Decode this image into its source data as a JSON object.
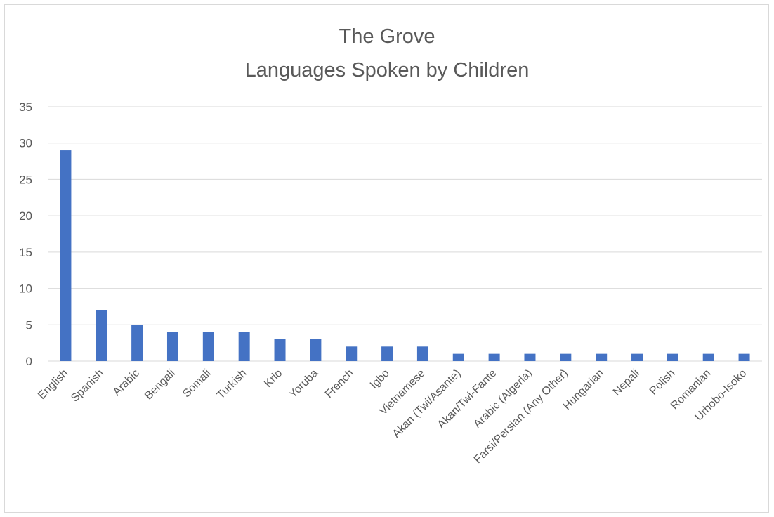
{
  "chart_data": {
    "type": "bar",
    "title": "The Grove",
    "subtitle": "Languages Spoken by Children",
    "xlabel": "",
    "ylabel": "",
    "ylim": [
      0,
      35
    ],
    "yticks": [
      0,
      5,
      10,
      15,
      20,
      25,
      30,
      35
    ],
    "grid": true,
    "legend": "none",
    "bar_color": "#4472c4",
    "categories": [
      "English",
      "Spanish",
      "Arabic",
      "Bengali",
      "Somali",
      "Turkish",
      "Krio",
      "Yoruba",
      "French",
      "Igbo",
      "Vietnamese",
      "Akan (Twi/Asante)",
      "Akan/Twi-Fante",
      "Arabic (Algeria)",
      "Farsi/Persian (Any Other)",
      "Hungarian",
      "Nepali",
      "Polish",
      "Romanian",
      "Urhobo-Isoko"
    ],
    "values": [
      29,
      7,
      5,
      4,
      4,
      4,
      3,
      3,
      2,
      2,
      2,
      1,
      1,
      1,
      1,
      1,
      1,
      1,
      1,
      1
    ]
  }
}
